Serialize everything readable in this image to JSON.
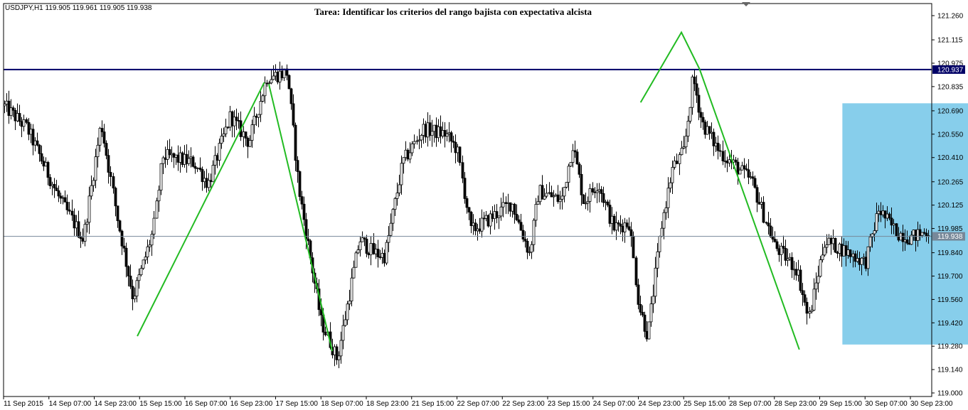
{
  "chart_data": {
    "type": "candlestick",
    "symbol_info": "USDJPY,H1  119.905 119.961 119.905 119.938",
    "title": "Tarea: Identificar los criterios del rango bajista con expectativa alcista",
    "ylim": [
      119.0,
      121.305
    ],
    "y_ticks": [
      "121.260",
      "121.115",
      "120.975",
      "120.835",
      "120.690",
      "120.550",
      "120.410",
      "120.265",
      "120.125",
      "119.985",
      "119.840",
      "119.700",
      "119.560",
      "119.420",
      "119.280",
      "119.140",
      "119.000"
    ],
    "x_ticks": [
      "11 Sep 2015",
      "14 Sep 07:00",
      "14 Sep 23:00",
      "15 Sep 15:00",
      "16 Sep 07:00",
      "16 Sep 23:00",
      "17 Sep 15:00",
      "18 Sep 07:00",
      "18 Sep 23:00",
      "21 Sep 15:00",
      "22 Sep 07:00",
      "22 Sep 23:00",
      "23 Sep 15:00",
      "24 Sep 07:00",
      "24 Sep 23:00",
      "25 Sep 15:00",
      "28 Sep 07:00",
      "28 Sep 23:00",
      "29 Sep 15:00",
      "30 Sep 07:00",
      "30 Sep 23:00"
    ],
    "grid": false,
    "resistance_level": {
      "value": 120.937,
      "label": "120.937",
      "color": "#000066"
    },
    "current_price": {
      "value": 119.938,
      "label": "119.938",
      "color": "#778899"
    },
    "range_box": {
      "t0": 18.5,
      "t1": 24.55,
      "high": 120.735,
      "low": 119.29,
      "color": "#87ceeb"
    },
    "peak_marker": {
      "t": 24.95,
      "price": 121.04,
      "color": "#696969"
    },
    "zigzag": {
      "color": "#22bb22",
      "segments": [
        [
          [
            2.95,
            119.34
          ],
          [
            5.75,
            120.86
          ]
        ],
        [
          [
            5.85,
            120.85
          ],
          [
            7.25,
            119.25
          ]
        ],
        [
          [
            14.05,
            120.74
          ],
          [
            14.95,
            121.16
          ],
          [
            15.35,
            120.94
          ],
          [
            17.55,
            119.26
          ]
        ]
      ]
    },
    "series": [
      {
        "price_path": [
          [
            0,
            120.72
          ],
          [
            0.5,
            120.59
          ],
          [
            1.2,
            120.18
          ],
          [
            1.75,
            119.92
          ],
          [
            2.15,
            120.62
          ],
          [
            2.5,
            120.05
          ],
          [
            2.85,
            119.57
          ],
          [
            3.3,
            119.97
          ],
          [
            3.5,
            120.42
          ],
          [
            4.2,
            120.38
          ],
          [
            4.5,
            120.25
          ],
          [
            5.0,
            120.66
          ],
          [
            5.4,
            120.5
          ],
          [
            5.8,
            120.89
          ],
          [
            6.25,
            120.92
          ],
          [
            6.5,
            120.23
          ],
          [
            7.0,
            119.43
          ],
          [
            7.35,
            119.2
          ],
          [
            7.85,
            119.92
          ],
          [
            8.15,
            119.84
          ],
          [
            8.4,
            119.82
          ],
          [
            8.8,
            120.38
          ],
          [
            9.25,
            120.58
          ],
          [
            9.75,
            120.55
          ],
          [
            10.0,
            120.46
          ],
          [
            10.3,
            119.97
          ],
          [
            10.7,
            120.04
          ],
          [
            11.2,
            120.14
          ],
          [
            11.6,
            119.83
          ],
          [
            11.8,
            120.21
          ],
          [
            12.3,
            120.15
          ],
          [
            12.55,
            120.49
          ],
          [
            12.8,
            120.14
          ],
          [
            13.1,
            120.26
          ],
          [
            13.45,
            119.99
          ],
          [
            13.8,
            120.02
          ],
          [
            14.0,
            119.53
          ],
          [
            14.2,
            119.34
          ],
          [
            14.5,
            119.99
          ],
          [
            14.75,
            120.34
          ],
          [
            15.0,
            120.45
          ],
          [
            15.2,
            120.89
          ],
          [
            15.4,
            120.62
          ],
          [
            15.8,
            120.44
          ],
          [
            16.5,
            120.27
          ],
          [
            17.0,
            119.88
          ],
          [
            17.5,
            119.74
          ],
          [
            17.75,
            119.44
          ],
          [
            18.1,
            119.91
          ],
          [
            18.5,
            119.86
          ],
          [
            19.0,
            119.78
          ],
          [
            19.3,
            120.1
          ],
          [
            19.7,
            119.96
          ],
          [
            20.0,
            119.93
          ],
          [
            20.5,
            119.98
          ],
          [
            21.0,
            119.88
          ],
          [
            21.2,
            119.9
          ],
          [
            21.4,
            120.12
          ],
          [
            21.7,
            119.96
          ],
          [
            22.0,
            119.9
          ],
          [
            22.3,
            120.1
          ],
          [
            22.5,
            119.93
          ]
        ]
      }
    ]
  }
}
